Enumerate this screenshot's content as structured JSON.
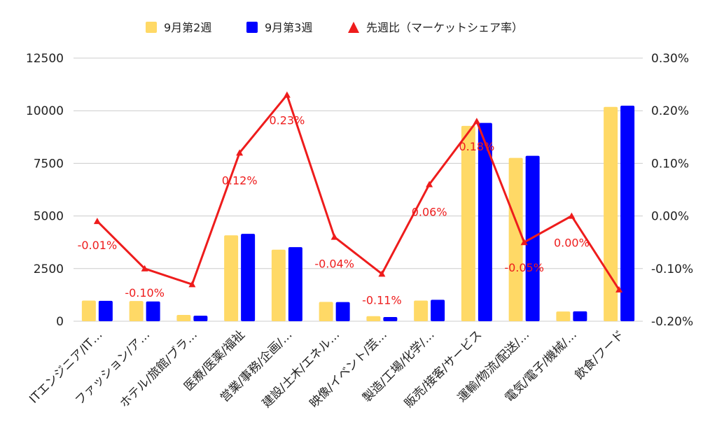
{
  "chart_data": {
    "type": "bar",
    "categories": [
      "ITエンジニア/IT…",
      "ファッション/ア…",
      "ホテル/旅館/ブラ…",
      "医療/医薬/福祉",
      "営業/事務/企画/…",
      "建設/土木/エネル…",
      "映像/イベント/芸…",
      "製造/工場/化学/…",
      "販売/接客/サービス",
      "運輸/物流/配送/…",
      "電気/電子/機械/…",
      "飲食/フード"
    ],
    "series": [
      {
        "name": "9月第2週",
        "type": "bar",
        "axis": "left",
        "color": "#ffd966",
        "values": [
          980,
          960,
          300,
          4080,
          3400,
          920,
          240,
          980,
          9280,
          7760,
          460,
          10180
        ]
      },
      {
        "name": "9月第3週",
        "type": "bar",
        "axis": "left",
        "color": "#0000ff",
        "values": [
          970,
          940,
          260,
          4150,
          3520,
          910,
          200,
          1020,
          9420,
          7860,
          470,
          10240
        ]
      },
      {
        "name": "先週比（マーケットシェア率）",
        "type": "line",
        "axis": "right",
        "color": "#ee1c1c",
        "marker": "triangle",
        "values": [
          -0.01,
          -0.1,
          -0.13,
          0.12,
          0.23,
          -0.04,
          -0.11,
          0.06,
          0.18,
          -0.05,
          0.0,
          -0.14
        ],
        "labels": [
          "-0.01%",
          "-0.10%",
          "",
          "0.12%",
          "0.23%",
          "-0.04%",
          "-0.11%",
          "0.06%",
          "0.18%",
          "-0.05%",
          "0.00%",
          ""
        ]
      }
    ],
    "yaxis_left": {
      "range": [
        0,
        12500
      ],
      "ticks": [
        "0",
        "2500",
        "5000",
        "7500",
        "10000",
        "12500"
      ],
      "tick_values": [
        0,
        2500,
        5000,
        7500,
        10000,
        12500
      ]
    },
    "yaxis_right": {
      "range": [
        -0.2,
        0.3
      ],
      "ticks": [
        "-0.20%",
        "-0.10%",
        "0.00%",
        "0.10%",
        "0.20%",
        "0.30%"
      ],
      "tick_values": [
        -0.2,
        -0.1,
        0.0,
        0.1,
        0.2,
        0.3
      ]
    },
    "grid": true,
    "legend_position": "top-center",
    "title": "",
    "xlabel": "",
    "ylabel": ""
  }
}
